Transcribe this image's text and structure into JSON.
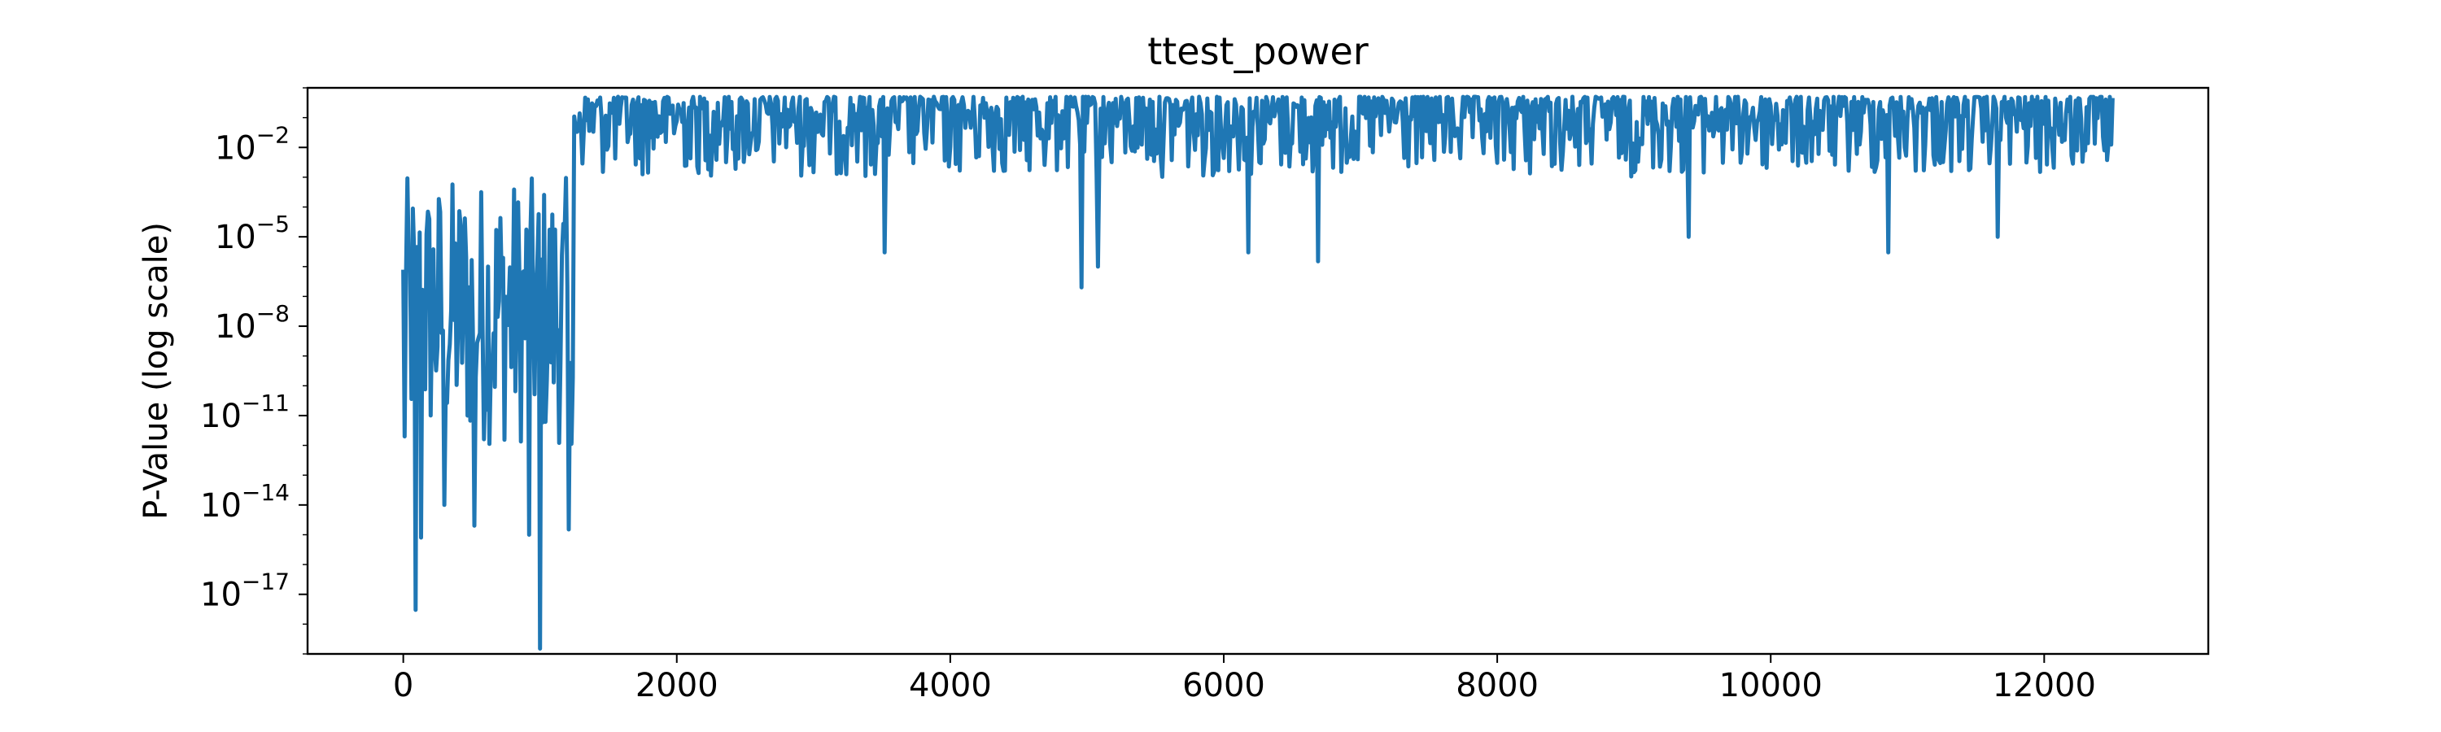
{
  "chart_data": {
    "type": "line",
    "title": "ttest_power",
    "xlabel": "",
    "ylabel": "P-Value (log scale)",
    "y_scale": "log",
    "xlim": [
      -700,
      13200
    ],
    "ylim": [
      1e-19,
      1.0
    ],
    "grid": false,
    "legend": "none",
    "x_ticks": [
      0,
      2000,
      4000,
      6000,
      8000,
      10000,
      12000
    ],
    "x_tick_labels": [
      "0",
      "2000",
      "4000",
      "6000",
      "8000",
      "10000",
      "12000"
    ],
    "y_ticks": [
      1e-17,
      1e-14,
      1e-11,
      1e-08,
      1e-05,
      0.01
    ],
    "y_tick_labels": [
      {
        "base": "10",
        "exp": "−17"
      },
      {
        "base": "10",
        "exp": "−14"
      },
      {
        "base": "10",
        "exp": "−11"
      },
      {
        "base": "10",
        "exp": "−8"
      },
      {
        "base": "10",
        "exp": "−5"
      },
      {
        "base": "10",
        "exp": "−2"
      }
    ],
    "series": [
      {
        "color": "#1f77b4",
        "segments": [
          {
            "x_start": 0,
            "x_end": 1250,
            "y_typical_min": 1e-12,
            "y_typical_max": 0.001,
            "y_max": 0.003
          },
          {
            "x_start": 1250,
            "x_end": 12500,
            "y_typical_min": 0.001,
            "y_typical_max": 0.5,
            "y_max": 0.5
          }
        ],
        "notable_minima": [
          {
            "x": 90,
            "y": 3e-18
          },
          {
            "x": 1000,
            "y": 1.5e-19
          },
          {
            "x": 10,
            "y": 2e-12
          },
          {
            "x": 130,
            "y": 8e-16
          },
          {
            "x": 300,
            "y": 1e-14
          },
          {
            "x": 520,
            "y": 2e-15
          },
          {
            "x": 920,
            "y": 1e-15
          },
          {
            "x": 1210,
            "y": 1.5e-15
          },
          {
            "x": 3520,
            "y": 3e-06
          },
          {
            "x": 4960,
            "y": 2e-07
          },
          {
            "x": 5080,
            "y": 1e-06
          },
          {
            "x": 6180,
            "y": 3e-06
          },
          {
            "x": 6690,
            "y": 1.5e-06
          },
          {
            "x": 9400,
            "y": 1e-05
          },
          {
            "x": 10860,
            "y": 3e-06
          },
          {
            "x": 11660,
            "y": 1e-05
          }
        ]
      }
    ]
  }
}
